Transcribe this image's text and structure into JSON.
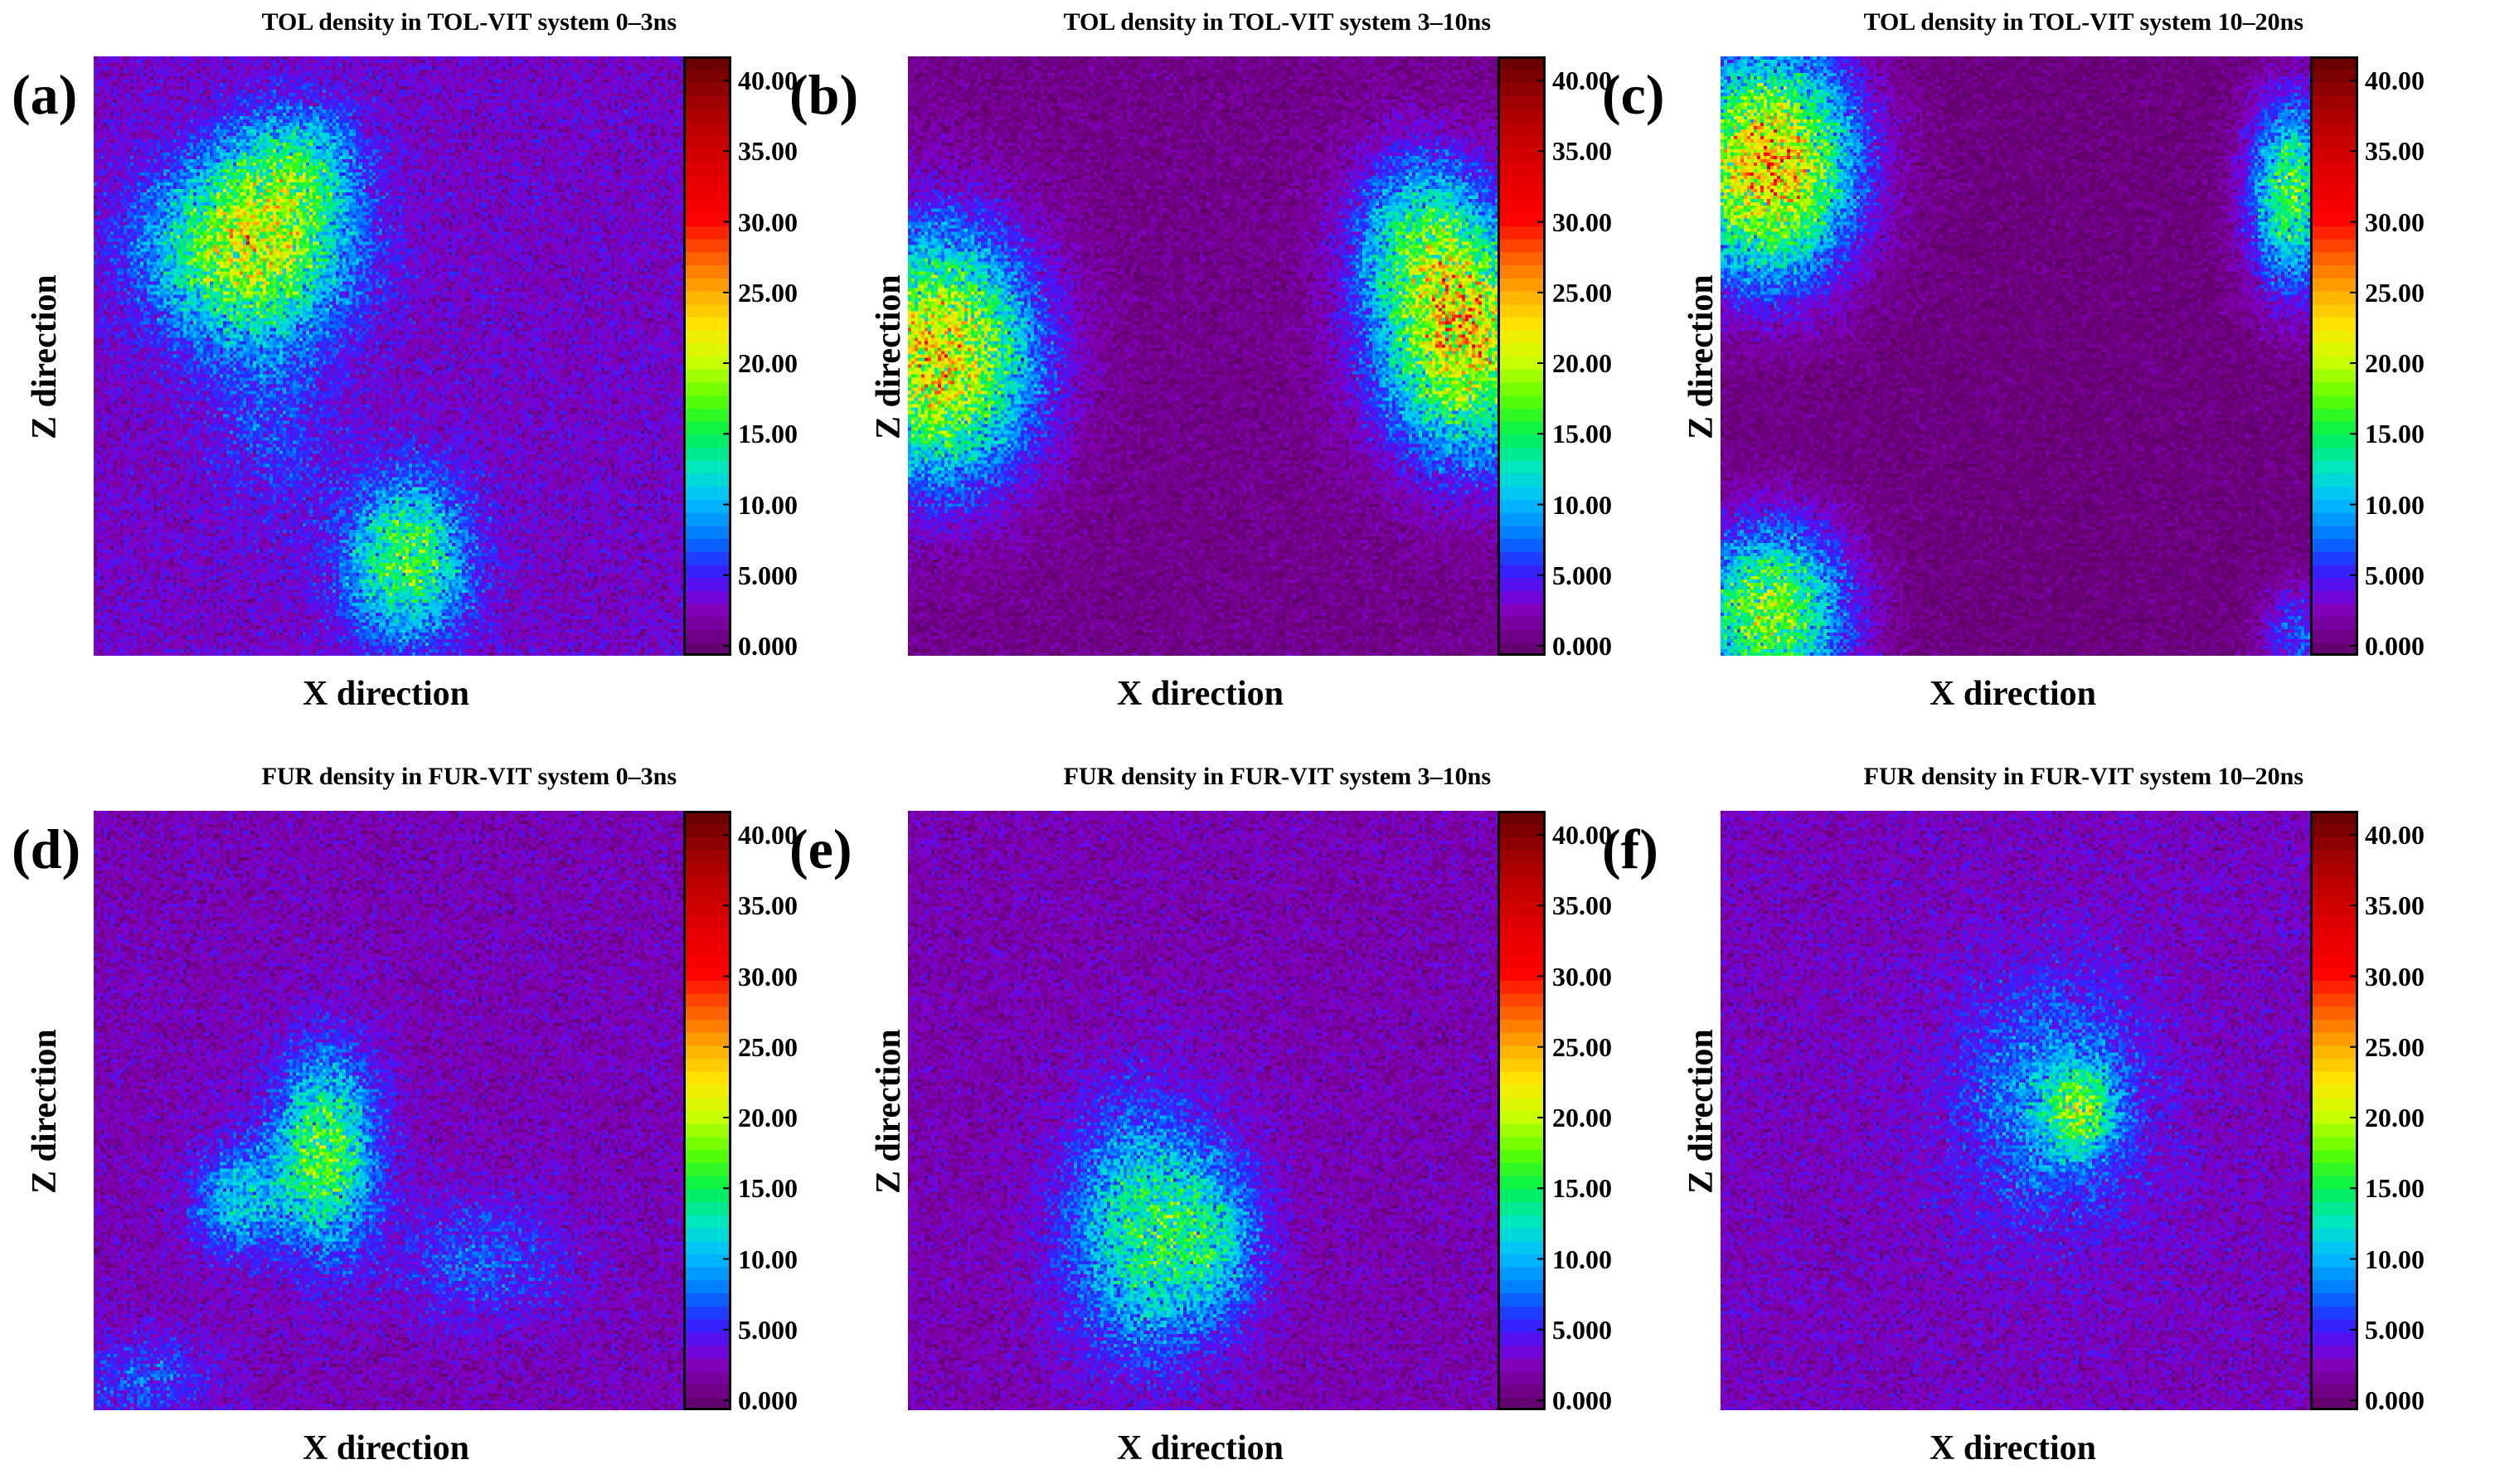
{
  "chart_data": [
    {
      "panel": "(a)",
      "type": "heatmap",
      "title": "TOL density in TOL-VIT system 0–3ns",
      "xlabel": "X direction",
      "ylabel": "Z direction",
      "colorbar": {
        "ticks": [
          "0.000",
          "5.000",
          "10.00",
          "15.00",
          "20.00",
          "25.00",
          "30.00",
          "35.00",
          "40.00"
        ],
        "range": [
          0,
          41
        ]
      },
      "background_level": 3.5,
      "hotspots": [
        {
          "x": 0.26,
          "z": 0.68,
          "sx": 0.11,
          "sz": 0.1,
          "peak": 17
        },
        {
          "x": 0.34,
          "z": 0.82,
          "sx": 0.07,
          "sz": 0.07,
          "peak": 8
        },
        {
          "x": 0.53,
          "z": 0.16,
          "sx": 0.07,
          "sz": 0.09,
          "peak": 13
        },
        {
          "x": 0.3,
          "z": 0.4,
          "sx": 0.07,
          "sz": 0.12,
          "peak": 3
        }
      ]
    },
    {
      "panel": "(b)",
      "type": "heatmap",
      "title": "TOL density in TOL-VIT system 3–10ns",
      "xlabel": "X direction",
      "ylabel": "Z direction",
      "colorbar": {
        "ticks": [
          "0.000",
          "5.000",
          "10.00",
          "15.00",
          "20.00",
          "25.00",
          "30.00",
          "35.00",
          "40.00"
        ],
        "range": [
          0,
          41
        ]
      },
      "background_level": 1.5,
      "hotspots": [
        {
          "x": 0.05,
          "z": 0.5,
          "sx": 0.11,
          "sz": 0.14,
          "peak": 21
        },
        {
          "x": 0.95,
          "z": 0.52,
          "sx": 0.1,
          "sz": 0.13,
          "peak": 20
        },
        {
          "x": 0.87,
          "z": 0.7,
          "sx": 0.08,
          "sz": 0.1,
          "peak": 10
        }
      ]
    },
    {
      "panel": "(c)",
      "type": "heatmap",
      "title": "TOL density in TOL-VIT system 10–20ns",
      "xlabel": "X direction",
      "ylabel": "Z direction",
      "colorbar": {
        "ticks": [
          "0.000",
          "5.000",
          "10.00",
          "15.00",
          "20.00",
          "25.00",
          "30.00",
          "35.00",
          "40.00"
        ],
        "range": [
          0,
          41
        ]
      },
      "background_level": 1.0,
      "hotspots": [
        {
          "x": 0.08,
          "z": 0.82,
          "sx": 0.1,
          "sz": 0.13,
          "peak": 23
        },
        {
          "x": 0.08,
          "z": 0.07,
          "sx": 0.09,
          "sz": 0.1,
          "peak": 17
        },
        {
          "x": 0.97,
          "z": 0.77,
          "sx": 0.05,
          "sz": 0.11,
          "peak": 15
        },
        {
          "x": 0.98,
          "z": 0.03,
          "sx": 0.04,
          "sz": 0.06,
          "peak": 6
        }
      ]
    },
    {
      "panel": "(d)",
      "type": "heatmap",
      "title": "FUR density in FUR-VIT system 0–3ns",
      "xlabel": "X direction",
      "ylabel": "Z direction",
      "colorbar": {
        "ticks": [
          "0.000",
          "5.000",
          "10.00",
          "15.00",
          "20.00",
          "25.00",
          "30.00",
          "35.00",
          "40.00"
        ],
        "range": [
          0,
          41
        ]
      },
      "background_level": 3.0,
      "hotspots": [
        {
          "x": 0.39,
          "z": 0.43,
          "sx": 0.06,
          "sz": 0.11,
          "peak": 14
        },
        {
          "x": 0.24,
          "z": 0.35,
          "sx": 0.05,
          "sz": 0.06,
          "peak": 8
        },
        {
          "x": 0.66,
          "z": 0.25,
          "sx": 0.1,
          "sz": 0.07,
          "peak": 4
        },
        {
          "x": 0.08,
          "z": 0.05,
          "sx": 0.08,
          "sz": 0.05,
          "peak": 4
        }
      ]
    },
    {
      "panel": "(e)",
      "type": "heatmap",
      "title": "FUR density in FUR-VIT system 3–10ns",
      "xlabel": "X direction",
      "ylabel": "Z direction",
      "colorbar": {
        "ticks": [
          "0.000",
          "5.000",
          "10.00",
          "15.00",
          "20.00",
          "25.00",
          "30.00",
          "35.00",
          "40.00"
        ],
        "range": [
          0,
          41
        ]
      },
      "background_level": 2.8,
      "hotspots": [
        {
          "x": 0.4,
          "z": 0.3,
          "sx": 0.09,
          "sz": 0.14,
          "peak": 11
        },
        {
          "x": 0.52,
          "z": 0.28,
          "sx": 0.06,
          "sz": 0.09,
          "peak": 6
        }
      ]
    },
    {
      "panel": "(f)",
      "type": "heatmap",
      "title": "FUR density in FUR-VIT system 10–20ns",
      "xlabel": "X direction",
      "ylabel": "Z direction",
      "colorbar": {
        "ticks": [
          "0.000",
          "5.000",
          "10.00",
          "15.00",
          "20.00",
          "25.00",
          "30.00",
          "35.00",
          "40.00"
        ],
        "range": [
          0,
          41
        ]
      },
      "background_level": 3.2,
      "hotspots": [
        {
          "x": 0.56,
          "z": 0.52,
          "sx": 0.11,
          "sz": 0.14,
          "peak": 6
        },
        {
          "x": 0.61,
          "z": 0.5,
          "sx": 0.04,
          "sz": 0.05,
          "peak": 10
        }
      ]
    }
  ]
}
